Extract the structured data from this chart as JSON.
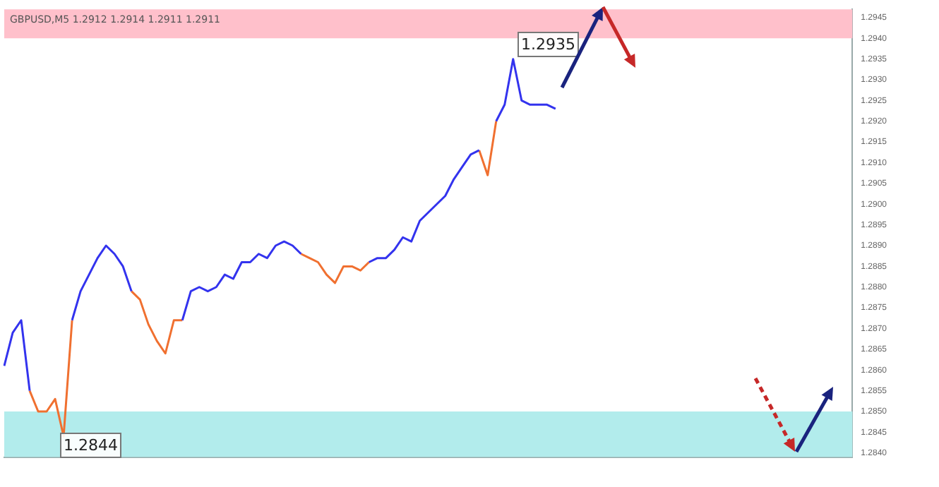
{
  "chart_data": {
    "type": "line",
    "title": "GBPUSD,M5 1.2912 1.2914 1.2911 1.2911",
    "categories": [
      null,
      null,
      null,
      null,
      null,
      null,
      null,
      null,
      null,
      null,
      null,
      null,
      null,
      null,
      null,
      null,
      null,
      null,
      null,
      null,
      null,
      null,
      null,
      null,
      null,
      null,
      null,
      null,
      null,
      null,
      null,
      null,
      null,
      null,
      null,
      null,
      null,
      null,
      null,
      null,
      null,
      null,
      null,
      null,
      null,
      null,
      null,
      null,
      null,
      null,
      null,
      null,
      null,
      null,
      null,
      null,
      null,
      null,
      null,
      null,
      null,
      null,
      null,
      null,
      null,
      null,
      null,
      null,
      null,
      null,
      null,
      null,
      null,
      null,
      null,
      null,
      null,
      null,
      null,
      null,
      null,
      null,
      null,
      null,
      null,
      null,
      null,
      null,
      null,
      null,
      null,
      null,
      null,
      null,
      null,
      null,
      null,
      null,
      null,
      null,
      null
    ],
    "series": [
      {
        "color": "#3333ee",
        "values": [
          1.2861,
          1.2869,
          1.2872,
          1.2855,
          null,
          null,
          null,
          null,
          1.2872,
          1.2879,
          1.2883,
          1.2887,
          1.289,
          1.2888,
          1.2885,
          1.2879,
          null,
          null,
          null,
          null,
          null,
          1.2872,
          1.2879,
          1.288,
          1.2879,
          1.288,
          1.2883,
          1.2882,
          1.2886,
          1.2886,
          1.2888,
          1.2887,
          1.289,
          1.2891,
          1.289,
          1.2888,
          null,
          null,
          null,
          null,
          null,
          null,
          null,
          1.2886,
          1.2887,
          1.2887,
          1.2889,
          1.2892,
          1.2891,
          1.2896,
          1.2898,
          1.29,
          1.2902,
          1.2906,
          1.2909,
          1.2912,
          1.2913,
          null,
          1.292,
          1.2924,
          1.2935,
          1.2925,
          1.2924,
          1.2924,
          1.2924,
          1.2923,
          null,
          null,
          null,
          null,
          null,
          null,
          null,
          null,
          null,
          null,
          null,
          null,
          null,
          null,
          null,
          null,
          null,
          null,
          null,
          null,
          null,
          null,
          null,
          null,
          null,
          null,
          null,
          null,
          null,
          null,
          null,
          null,
          null,
          null,
          null
        ]
      },
      {
        "color": "#f07030",
        "values": [
          null,
          null,
          null,
          1.2855,
          1.285,
          1.285,
          1.2853,
          1.2844,
          1.2872,
          null,
          null,
          null,
          null,
          null,
          null,
          1.2879,
          1.2877,
          1.2871,
          1.2867,
          1.2864,
          1.2872,
          1.2872,
          null,
          null,
          null,
          null,
          null,
          null,
          null,
          null,
          null,
          null,
          null,
          null,
          null,
          1.2888,
          1.2887,
          1.2886,
          1.2883,
          1.2881,
          1.2885,
          1.2885,
          1.2884,
          1.2886,
          null,
          null,
          null,
          null,
          null,
          null,
          null,
          null,
          null,
          null,
          null,
          null,
          1.2913,
          1.2907,
          1.292,
          null,
          null,
          null,
          null,
          null,
          null,
          null,
          null,
          null,
          null,
          null,
          null,
          null,
          null,
          null,
          null,
          null,
          null,
          null,
          null,
          null,
          null,
          null,
          null,
          null,
          null,
          null,
          null,
          null,
          null,
          null,
          null,
          null,
          null,
          null,
          null,
          null,
          null,
          null,
          null,
          null,
          null
        ]
      }
    ],
    "ylim": [
      1.2839,
      1.2947
    ],
    "yticks": [
      {
        "value": 1.284,
        "label": "1.2840"
      },
      {
        "value": 1.2845,
        "label": "1.2845"
      },
      {
        "value": 1.285,
        "label": "1.2850"
      },
      {
        "value": 1.2855,
        "label": "1.2855"
      },
      {
        "value": 1.286,
        "label": "1.2860"
      },
      {
        "value": 1.2865,
        "label": "1.2865"
      },
      {
        "value": 1.287,
        "label": "1.2870"
      },
      {
        "value": 1.2875,
        "label": "1.2875"
      },
      {
        "value": 1.288,
        "label": "1.2880"
      },
      {
        "value": 1.2885,
        "label": "1.2885"
      },
      {
        "value": 1.289,
        "label": "1.2890"
      },
      {
        "value": 1.2895,
        "label": "1.2895"
      },
      {
        "value": 1.29,
        "label": "1.2900"
      },
      {
        "value": 1.2905,
        "label": "1.2905"
      },
      {
        "value": 1.291,
        "label": "1.2910"
      },
      {
        "value": 1.2915,
        "label": "1.2915"
      },
      {
        "value": 1.292,
        "label": "1.2920"
      },
      {
        "value": 1.2925,
        "label": "1.2925"
      },
      {
        "value": 1.293,
        "label": "1.2930"
      },
      {
        "value": 1.2935,
        "label": "1.2935"
      },
      {
        "value": 1.294,
        "label": "1.2940"
      },
      {
        "value": 1.2945,
        "label": "1.2945"
      }
    ],
    "bands": [
      {
        "axis": "y",
        "from": 1.294,
        "to": 1.2947,
        "color": "#ffc0cb"
      },
      {
        "axis": "y",
        "from": 1.2839,
        "to": 1.285,
        "color": "#b2ecec"
      }
    ],
    "annotations": [
      "1.2935",
      "1.2844"
    ],
    "grid": false,
    "legend": false,
    "marker": "none",
    "line_style": "solid"
  }
}
